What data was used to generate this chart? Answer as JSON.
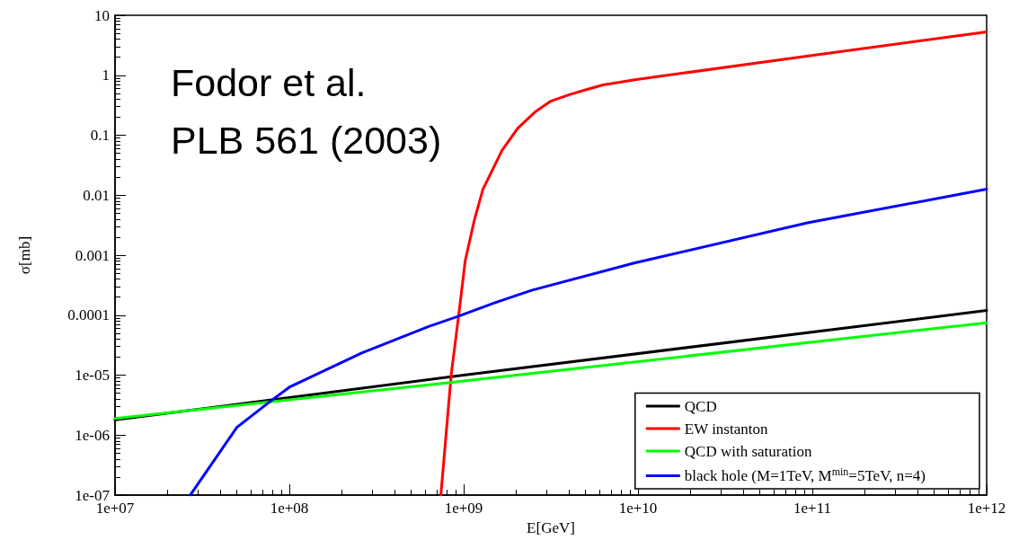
{
  "chart_data": {
    "type": "line",
    "xlabel": "E[GeV]",
    "ylabel": "σ[mb]",
    "log": "xy",
    "grid": false,
    "legend": "bottom right",
    "marker": "none",
    "line_style": "solid",
    "annotations": [
      "Fodor et al.",
      "PLB 561 (2003)"
    ],
    "xlim": [
      10000000,
      1000000000000
    ],
    "xticks": [
      {
        "value": 10000000,
        "label": "1e+07"
      },
      {
        "value": 100000000,
        "label": "1e+08"
      },
      {
        "value": 1000000000,
        "label": "1e+09"
      },
      {
        "value": 10000000000,
        "label": "1e+10"
      },
      {
        "value": 100000000000,
        "label": "1e+11"
      },
      {
        "value": 1000000000000,
        "label": "1e+12"
      }
    ],
    "ylim": [
      1e-07,
      10
    ],
    "yticks": [
      {
        "value": 1e-07,
        "label": "1e-07"
      },
      {
        "value": 1e-06,
        "label": "1e-06"
      },
      {
        "value": 1e-05,
        "label": "1e-05"
      },
      0.0001,
      0.001,
      0.01,
      0.1,
      1,
      10
    ],
    "series": [
      {
        "name": "QCD",
        "color": "#000000",
        "x": [
          10000000,
          1000000000,
          1000000000000
        ],
        "values": [
          1.8e-06,
          1e-05,
          0.00012
        ]
      },
      {
        "name": "EW instanton",
        "color": "#ff0000",
        "x": [
          740000000,
          807000000,
          850000000,
          950000000,
          1020000000,
          1150000000,
          1290000000,
          1660000000,
          2040000000,
          2570000000,
          3160000000,
          4000000000,
          5000000000,
          6300000000,
          9800000000,
          95000000000,
          1000000000000
        ],
        "values": [
          1e-07,
          1.9e-06,
          1.07e-05,
          0.00014,
          0.0008,
          0.0038,
          0.0126,
          0.056,
          0.13,
          0.245,
          0.37,
          0.47,
          0.57,
          0.69,
          0.85,
          2.1,
          5.3
        ]
      },
      {
        "name": "QCD with saturation",
        "color": "#00ff00",
        "x": [
          10000000,
          1000000000,
          1000000000000
        ],
        "values": [
          1.9e-06,
          8e-06,
          7.5e-05
        ]
      },
      {
        "name": "black hole (M=1TeV, M$^{min}$=5TeV, n=4)",
        "color": "#0000ff",
        "x": [
          27000000,
          50000000,
          79000000,
          100000000,
          260000000,
          630000000,
          950000000,
          1500000000,
          2450000000,
          9500000000,
          95000000000,
          1000000000000
        ],
        "values": [
          1e-07,
          1.35e-06,
          3.8e-06,
          6.3e-06,
          2.35e-05,
          6.5e-05,
          9.8e-05,
          0.00016,
          0.00026,
          0.00074,
          0.0035,
          0.0126
        ]
      }
    ]
  }
}
